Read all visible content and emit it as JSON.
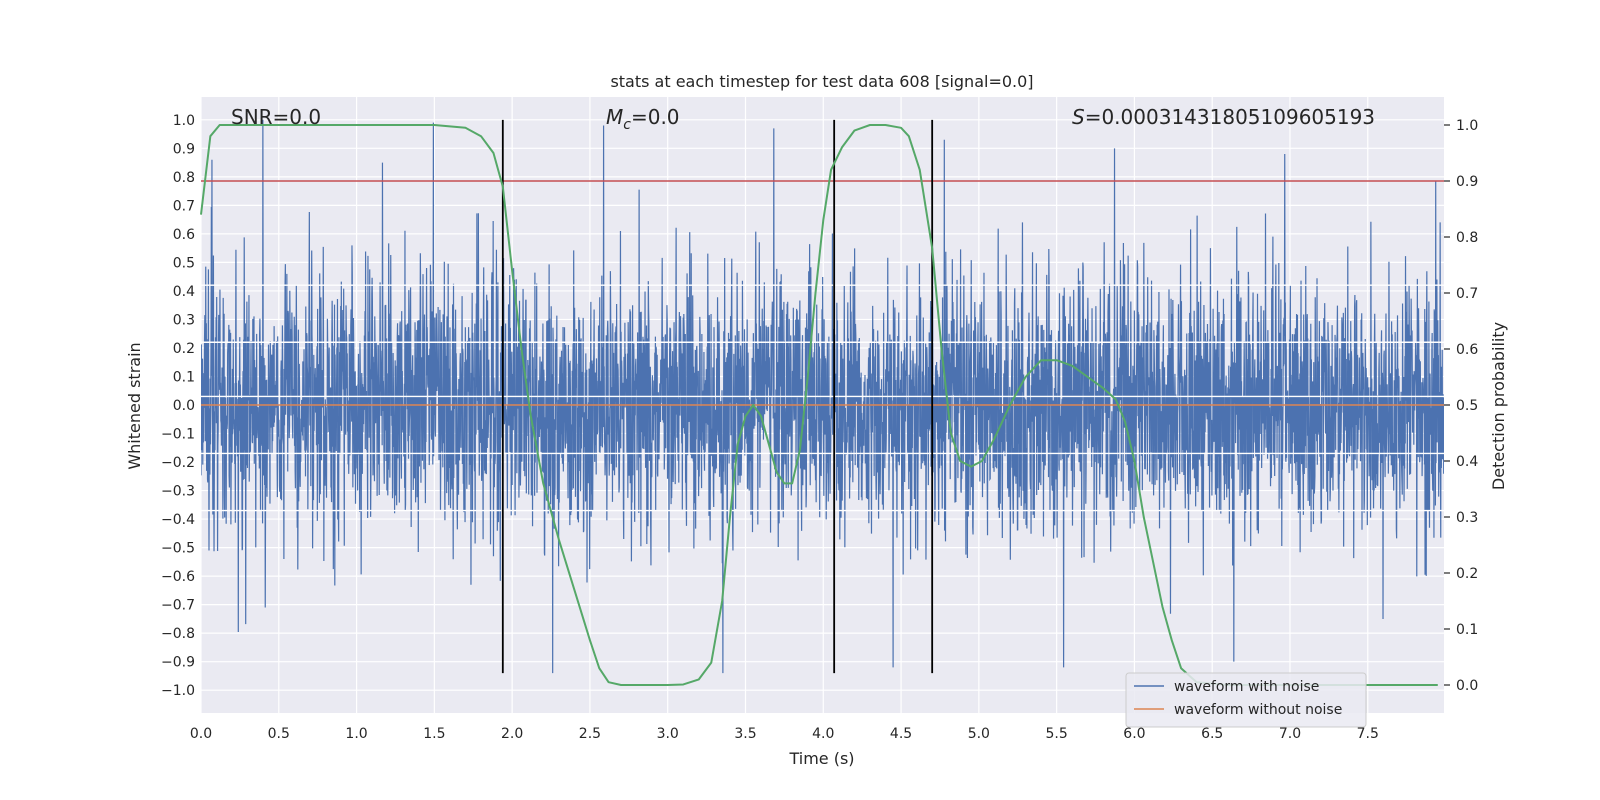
{
  "chart_data": {
    "type": "line",
    "title": "stats at each timestep for test data 608 [signal=0.0]",
    "xlabel": "Time (s)",
    "ylabel": "Whitened strain",
    "y2label": "Detection probability",
    "xlim": [
      0.0,
      7.99
    ],
    "ylim": [
      -1.08,
      1.08
    ],
    "y2lim": [
      -0.05,
      1.05
    ],
    "xticks": [
      0.0,
      0.5,
      1.0,
      1.5,
      2.0,
      2.5,
      3.0,
      3.5,
      4.0,
      4.5,
      5.0,
      5.5,
      6.0,
      6.5,
      7.0,
      7.5
    ],
    "xtick_labels": [
      "0.0",
      "0.5",
      "1.0",
      "1.5",
      "2.0",
      "2.5",
      "3.0",
      "3.5",
      "4.0",
      "4.5",
      "5.0",
      "5.5",
      "6.0",
      "6.5",
      "7.0",
      "7.5"
    ],
    "yticks": [
      -1.0,
      -0.9,
      -0.8,
      -0.7,
      -0.6,
      -0.5,
      -0.4,
      -0.3,
      -0.2,
      -0.1,
      0.0,
      0.1,
      0.2,
      0.3,
      0.4,
      0.5,
      0.6,
      0.7,
      0.8,
      0.9,
      1.0
    ],
    "ytick_labels": [
      "−1.0",
      "−0.9",
      "−0.8",
      "−0.7",
      "−0.6",
      "−0.5",
      "−0.4",
      "−0.3",
      "−0.2",
      "−0.1",
      "0.0",
      "0.1",
      "0.2",
      "0.3",
      "0.4",
      "0.5",
      "0.6",
      "0.7",
      "0.8",
      "0.9",
      "1.0"
    ],
    "y2ticks": [
      0.0,
      0.1,
      0.2,
      0.3,
      0.4,
      0.5,
      0.6,
      0.7,
      0.8,
      0.9,
      1.0
    ],
    "y2tick_labels": [
      "0.0",
      "0.1",
      "0.2",
      "0.3",
      "0.4",
      "0.5",
      "0.6",
      "0.7",
      "0.8",
      "0.9",
      "1.0"
    ],
    "annotations": {
      "snr": "SNR=0.0",
      "mc_symbol": "M",
      "mc_sub": "c",
      "mc_value": "=0.0",
      "s_symbol": "S",
      "s_value": "=0.00031431805109605193"
    },
    "legend": {
      "position": "lower-right",
      "entries": [
        {
          "label": "waveform with noise",
          "color": "#4c72b0"
        },
        {
          "label": "waveform without noise",
          "color": "#dd8452"
        }
      ]
    },
    "series": [
      {
        "name": "waveform with noise",
        "axis": "left",
        "color": "#4c72b0",
        "kind": "noise",
        "duration": 7.99,
        "typical_amplitude": 0.5,
        "peak_values": [
          1.0,
          0.99,
          0.98,
          0.97,
          0.93,
          0.9,
          0.88,
          0.86,
          0.85,
          -0.94,
          -0.94,
          -0.92,
          -0.92,
          -0.9
        ]
      },
      {
        "name": "waveform without noise",
        "axis": "left",
        "color": "#dd8452",
        "x": [
          0.0,
          7.99
        ],
        "y": [
          0.0,
          0.0
        ]
      },
      {
        "name": "detection probability",
        "axis": "right",
        "color": "#55a868",
        "x": [
          0.0,
          0.06,
          0.12,
          0.3,
          0.6,
          1.0,
          1.5,
          1.7,
          1.8,
          1.88,
          1.94,
          2.0,
          2.06,
          2.12,
          2.2,
          2.3,
          2.4,
          2.5,
          2.56,
          2.62,
          2.7,
          3.0,
          3.1,
          3.2,
          3.28,
          3.35,
          3.4,
          3.45,
          3.5,
          3.55,
          3.6,
          3.65,
          3.7,
          3.75,
          3.8,
          3.85,
          3.9,
          3.95,
          4.0,
          4.05,
          4.12,
          4.2,
          4.3,
          4.4,
          4.5,
          4.55,
          4.62,
          4.7,
          4.76,
          4.82,
          4.88,
          4.95,
          5.02,
          5.1,
          5.2,
          5.3,
          5.4,
          5.5,
          5.6,
          5.7,
          5.8,
          5.88,
          5.94,
          6.0,
          6.06,
          6.12,
          6.18,
          6.24,
          6.3,
          6.4,
          6.6,
          7.0,
          7.5,
          7.95
        ],
        "y": [
          0.84,
          0.98,
          1.0,
          1.0,
          1.0,
          1.0,
          1.0,
          0.995,
          0.98,
          0.95,
          0.89,
          0.74,
          0.6,
          0.48,
          0.36,
          0.26,
          0.17,
          0.08,
          0.03,
          0.005,
          0.0,
          0.0,
          0.001,
          0.01,
          0.04,
          0.15,
          0.3,
          0.43,
          0.48,
          0.5,
          0.48,
          0.43,
          0.38,
          0.36,
          0.36,
          0.42,
          0.55,
          0.7,
          0.83,
          0.92,
          0.96,
          0.99,
          1.0,
          1.0,
          0.995,
          0.98,
          0.92,
          0.78,
          0.6,
          0.45,
          0.4,
          0.39,
          0.4,
          0.44,
          0.5,
          0.55,
          0.58,
          0.58,
          0.57,
          0.55,
          0.53,
          0.51,
          0.47,
          0.4,
          0.3,
          0.22,
          0.14,
          0.08,
          0.03,
          0.005,
          0.0,
          0.0,
          0.0,
          0.0
        ]
      },
      {
        "name": "threshold",
        "axis": "right",
        "color": "#c44e52",
        "x": [
          0.0,
          7.99
        ],
        "y": [
          0.9,
          0.9
        ]
      }
    ],
    "vlines": {
      "color": "#000000",
      "x": [
        1.94,
        4.07,
        4.7
      ],
      "y_range": [
        -0.94,
        1.0
      ]
    }
  }
}
